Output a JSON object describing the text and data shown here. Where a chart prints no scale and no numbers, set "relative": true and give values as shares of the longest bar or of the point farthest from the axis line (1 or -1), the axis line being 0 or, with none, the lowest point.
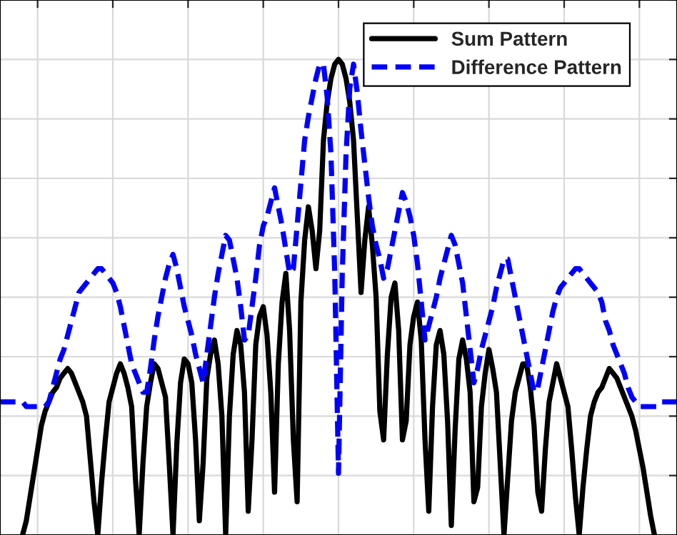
{
  "chart_data": {
    "type": "line",
    "relative": true,
    "grid": true,
    "legend": "top right",
    "categories": [
      null,
      null,
      null,
      null,
      null,
      null,
      null,
      null,
      null,
      null,
      null,
      null,
      null,
      null,
      null,
      null,
      null,
      null,
      null,
      null,
      null,
      null,
      null,
      null,
      null,
      null,
      null,
      null,
      null,
      null,
      null,
      null,
      null,
      null,
      null,
      null,
      null,
      null,
      null,
      null,
      null,
      null,
      null,
      null,
      null,
      null,
      null,
      null,
      null,
      null,
      null,
      null,
      null,
      null,
      null,
      null,
      null,
      null,
      null,
      null,
      null,
      null,
      null,
      null,
      null,
      null,
      null,
      null,
      null,
      null,
      null,
      null,
      null,
      null,
      null,
      null,
      null,
      null,
      null,
      null,
      null,
      null,
      null,
      null,
      null,
      null,
      null,
      null,
      null,
      null,
      null,
      null,
      null,
      null,
      null,
      null,
      null,
      null,
      null,
      null,
      null,
      null,
      null,
      null,
      null,
      null,
      null,
      null,
      null,
      null,
      null,
      null,
      null,
      null,
      null,
      null,
      null,
      null,
      null,
      null,
      null,
      null,
      null,
      null,
      null,
      null,
      null,
      null,
      null,
      null,
      null,
      null,
      null,
      null,
      null,
      null,
      null,
      null,
      null,
      null,
      null,
      null,
      null,
      null,
      null,
      null,
      null,
      null,
      null,
      null,
      null,
      null,
      null,
      null,
      null,
      null,
      null,
      null,
      null,
      null,
      null,
      null,
      null,
      null,
      null,
      null,
      null,
      null,
      null,
      null,
      null,
      null,
      null,
      null,
      null,
      null,
      null,
      null,
      null,
      null,
      null
    ],
    "series": [
      {
        "name": "Sum Pattern",
        "color": "#000000",
        "line_style": "solid",
        "values": [
          null,
          null,
          null,
          null,
          null,
          null,
          0,
          0.03,
          0.08,
          0.13,
          0.18,
          0.23,
          0.26,
          0.28,
          0.3,
          0.31,
          0.33,
          0.34,
          0.35,
          0.34,
          0.32,
          0.3,
          0.28,
          0.25,
          0.16,
          0.07,
          0,
          0.11,
          0.2,
          0.28,
          0.31,
          0.34,
          0.36,
          0.34,
          0.31,
          0.27,
          0.12,
          0,
          0.15,
          0.27,
          0.32,
          0.36,
          0.35,
          0.32,
          0.29,
          0.15,
          0,
          0.19,
          0.32,
          0.37,
          0.36,
          0.32,
          0.2,
          0.03,
          0.15,
          0.33,
          0.38,
          0.41,
          0.36,
          0.25,
          0,
          0.25,
          0.38,
          0.43,
          0.4,
          0.3,
          0.05,
          0.2,
          0.4,
          0.46,
          0.48,
          0.42,
          0.3,
          0.09,
          0.36,
          0.49,
          0.55,
          0.43,
          0.2,
          0.07,
          0.49,
          0.62,
          0.69,
          0.64,
          0.56,
          0.64,
          0.83,
          0.91,
          0.96,
          0.99,
          1.0,
          0.99,
          0.96,
          0.91,
          0.83,
          0.67,
          0.51,
          0.62,
          0.69,
          0.61,
          0.5,
          0.26,
          0.2,
          0.38,
          0.5,
          0.53,
          0.43,
          0.2,
          0.24,
          0.4,
          0.46,
          0.49,
          0.41,
          0.2,
          0.05,
          0.27,
          0.4,
          0.43,
          0.38,
          0.24,
          0.02,
          0.22,
          0.37,
          0.41,
          0.37,
          0.3,
          0.07,
          0.1,
          0.27,
          0.34,
          0.39,
          0.35,
          0.3,
          0.15,
          0,
          0.12,
          0.24,
          0.3,
          0.33,
          0.36,
          0.36,
          0.31,
          0.23,
          0.09,
          0.05,
          0.18,
          0.28,
          0.32,
          0.36,
          0.33,
          0.3,
          0.27,
          0.18,
          0.08,
          0,
          0.1,
          0.18,
          0.25,
          0.28,
          0.3,
          0.31,
          0.33,
          0.35,
          0.34,
          0.33,
          0.31,
          0.29,
          0.27,
          0.25,
          0.22,
          0.18,
          0.14,
          0.09,
          0.04,
          0,
          null,
          null,
          null,
          null,
          null,
          null
        ]
      },
      {
        "name": "Difference Pattern",
        "color": "#0000ff",
        "line_style": "dashed",
        "values": [
          0.28,
          0.28,
          0.28,
          0.28,
          0.28,
          0.28,
          0.28,
          0.27,
          0.27,
          0.27,
          0.27,
          0.27,
          0.27,
          0.28,
          0.31,
          0.34,
          0.37,
          0.39,
          0.42,
          0.45,
          0.48,
          0.51,
          0.52,
          0.53,
          0.54,
          0.55,
          0.56,
          0.56,
          0.55,
          0.54,
          0.53,
          0.51,
          0.48,
          0.44,
          0.4,
          0.36,
          0.34,
          0.32,
          0.3,
          0.3,
          0.35,
          0.41,
          0.46,
          0.5,
          0.54,
          0.57,
          0.59,
          0.56,
          0.52,
          0.48,
          0.45,
          0.42,
          0.38,
          0.35,
          0.32,
          0.38,
          0.44,
          0.5,
          0.55,
          0.59,
          0.63,
          0.62,
          0.58,
          0.54,
          0.48,
          0.41,
          0.42,
          0.48,
          0.54,
          0.61,
          0.65,
          0.67,
          0.7,
          0.73,
          0.69,
          0.65,
          0.6,
          0.55,
          0.56,
          0.65,
          0.74,
          0.83,
          0.88,
          0.92,
          0.96,
          0.99,
          0.99,
          0.92,
          0.8,
          0.55,
          0.13,
          0.55,
          0.8,
          0.94,
          0.99,
          0.93,
          0.85,
          0.78,
          0.71,
          0.65,
          0.61,
          0.58,
          0.54,
          0.56,
          0.6,
          0.64,
          0.68,
          0.72,
          0.7,
          0.67,
          0.63,
          0.57,
          0.49,
          0.41,
          0.44,
          0.47,
          0.5,
          0.54,
          0.57,
          0.6,
          0.63,
          0.61,
          0.57,
          0.53,
          0.46,
          0.39,
          0.32,
          0.35,
          0.39,
          0.42,
          0.45,
          0.48,
          0.52,
          0.55,
          0.58,
          0.58,
          0.54,
          0.5,
          0.46,
          0.42,
          0.38,
          0.34,
          0.3,
          0.31,
          0.35,
          0.39,
          0.43,
          0.47,
          0.5,
          0.52,
          0.53,
          0.54,
          0.55,
          0.56,
          0.56,
          0.55,
          0.54,
          0.53,
          0.52,
          0.51,
          0.49,
          0.45,
          0.43,
          0.4,
          0.38,
          0.36,
          0.34,
          0.31,
          0.29,
          0.28,
          0.27,
          0.27,
          0.27,
          0.27,
          0.27,
          0.27,
          0.28,
          0.28,
          0.28,
          0.28,
          0.28
        ]
      }
    ]
  }
}
